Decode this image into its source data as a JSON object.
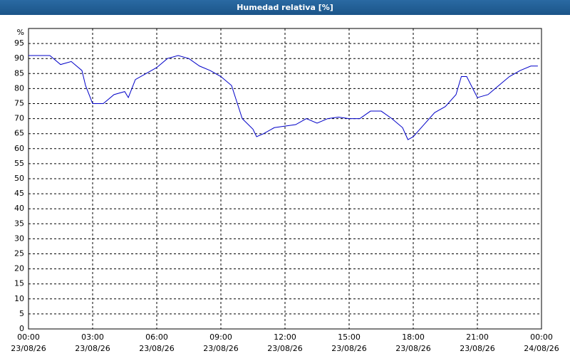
{
  "chart_data": {
    "type": "line",
    "title": "Humedad relativa [%]",
    "y_unit": "%",
    "x": [
      0,
      0.5,
      1,
      1.5,
      2,
      2.5,
      2.67,
      3,
      3.5,
      4,
      4.5,
      4.67,
      5,
      5.5,
      6,
      6.5,
      7,
      7.5,
      8,
      8.5,
      9,
      9.5,
      10,
      10.5,
      10.67,
      11,
      11.5,
      12,
      12.5,
      13,
      13.5,
      14,
      14.5,
      15,
      15.5,
      16,
      16.5,
      17,
      17.5,
      17.75,
      18,
      18.5,
      19,
      19.5,
      20,
      20.25,
      20.5,
      21,
      21.5,
      22,
      22.5,
      23,
      23.5,
      23.83
    ],
    "series": [
      {
        "name": "Humedad relativa",
        "color": "#0000c8",
        "values": [
          91,
          91,
          91,
          88,
          89,
          86,
          81,
          75,
          75,
          78,
          79,
          77,
          83,
          85,
          87,
          90,
          91,
          90,
          87.5,
          86,
          84,
          81,
          70,
          66.5,
          64,
          65,
          67,
          67.5,
          68,
          70,
          68.5,
          70,
          70.5,
          70,
          70,
          72.5,
          72.5,
          70,
          67,
          63,
          64,
          68,
          72,
          74,
          78,
          84,
          84,
          77,
          78,
          81,
          84,
          86,
          87.5,
          87.5
        ]
      }
    ],
    "xlim": [
      0,
      24
    ],
    "xticks": [
      {
        "value": 0,
        "label": "00:00"
      },
      {
        "value": 3,
        "label": "03:00"
      },
      {
        "value": 6,
        "label": "06:00"
      },
      {
        "value": 9,
        "label": "09:00"
      },
      {
        "value": 12,
        "label": "12:00"
      },
      {
        "value": 15,
        "label": "15:00"
      },
      {
        "value": 18,
        "label": "18:00"
      },
      {
        "value": 21,
        "label": "21:00"
      },
      {
        "value": 24,
        "label": "00:00"
      }
    ],
    "xtick_dates": [
      "23/08/26",
      "23/08/26",
      "23/08/26",
      "23/08/26",
      "23/08/26",
      "23/08/26",
      "23/08/26",
      "23/08/26",
      "24/08/26"
    ],
    "ylim": [
      0,
      100
    ],
    "yticks": [
      0,
      5,
      10,
      15,
      20,
      25,
      30,
      35,
      40,
      45,
      50,
      55,
      60,
      65,
      70,
      75,
      80,
      85,
      90,
      95
    ],
    "grid": true
  }
}
